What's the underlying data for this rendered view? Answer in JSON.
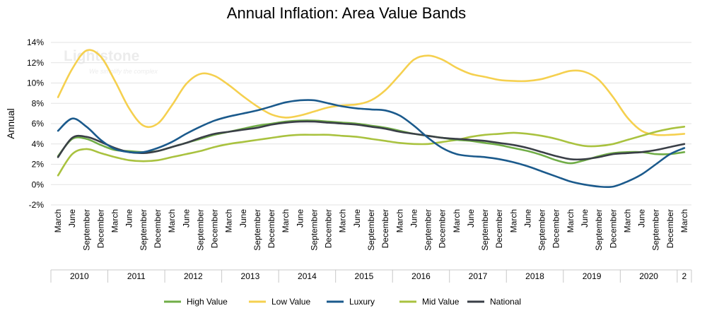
{
  "chart_data": {
    "type": "line",
    "title": "Annual Inflation: Area Value Bands",
    "ylabel": "Annual",
    "xlabel": "",
    "ylim": [
      -2,
      14
    ],
    "ytick_values": [
      -2,
      0,
      2,
      4,
      6,
      8,
      10,
      12,
      14
    ],
    "ytick_labels": [
      "-2%",
      "0%",
      "2%",
      "4%",
      "6%",
      "8%",
      "10%",
      "12%",
      "14%"
    ],
    "grid": true,
    "legend_position": "bottom",
    "watermark": "Lightstone",
    "watermark_tagline": "We simplify the complex",
    "months": [
      "March",
      "June",
      "September",
      "December"
    ],
    "years": [
      "2010",
      "2011",
      "2012",
      "2013",
      "2014",
      "2015",
      "2016",
      "2017",
      "2018",
      "2019",
      "2020",
      "2"
    ],
    "x": [
      "2010-03",
      "2010-06",
      "2010-09",
      "2010-12",
      "2011-03",
      "2011-06",
      "2011-09",
      "2011-12",
      "2012-03",
      "2012-06",
      "2012-09",
      "2012-12",
      "2013-03",
      "2013-06",
      "2013-09",
      "2013-12",
      "2014-03",
      "2014-06",
      "2014-09",
      "2014-12",
      "2015-03",
      "2015-06",
      "2015-09",
      "2015-12",
      "2016-03",
      "2016-06",
      "2016-09",
      "2016-12",
      "2017-03",
      "2017-06",
      "2017-09",
      "2017-12",
      "2018-03",
      "2018-06",
      "2018-09",
      "2018-12",
      "2019-03",
      "2019-06",
      "2019-09",
      "2019-12",
      "2020-03",
      "2020-06",
      "2020-09",
      "2020-12",
      "2021-03"
    ],
    "series": [
      {
        "name": "High Value",
        "color": "#70ad47",
        "values": [
          2.8,
          4.5,
          4.5,
          3.9,
          3.4,
          3.3,
          3.2,
          3.3,
          3.7,
          4.1,
          4.5,
          4.9,
          5.2,
          5.5,
          5.8,
          6.0,
          6.2,
          6.3,
          6.3,
          6.2,
          6.1,
          6.0,
          5.8,
          5.6,
          5.3,
          5.0,
          4.8,
          4.6,
          4.4,
          4.3,
          4.1,
          3.9,
          3.6,
          3.3,
          2.9,
          2.4,
          2.1,
          2.4,
          2.8,
          3.1,
          3.2,
          3.2,
          3.0,
          3.0,
          3.2
        ]
      },
      {
        "name": "Low Value",
        "color": "#f5d04f",
        "values": [
          8.6,
          11.4,
          13.2,
          12.6,
          10.2,
          7.5,
          5.8,
          6.0,
          7.8,
          9.9,
          10.9,
          10.7,
          9.8,
          8.7,
          7.7,
          6.9,
          6.6,
          6.8,
          7.2,
          7.6,
          7.8,
          7.9,
          8.3,
          9.3,
          10.8,
          12.3,
          12.7,
          12.3,
          11.5,
          10.9,
          10.6,
          10.3,
          10.2,
          10.2,
          10.4,
          10.8,
          11.2,
          11.1,
          10.3,
          8.6,
          6.6,
          5.3,
          4.9,
          4.9,
          5.0
        ]
      },
      {
        "name": "Luxury",
        "color": "#1b5a8c",
        "values": [
          5.3,
          6.5,
          5.7,
          4.4,
          3.5,
          3.2,
          3.2,
          3.6,
          4.2,
          5.0,
          5.7,
          6.3,
          6.7,
          7.0,
          7.3,
          7.7,
          8.1,
          8.3,
          8.3,
          8.0,
          7.7,
          7.5,
          7.4,
          7.3,
          6.8,
          5.8,
          4.6,
          3.6,
          3.0,
          2.8,
          2.7,
          2.5,
          2.2,
          1.8,
          1.3,
          0.8,
          0.3,
          0.0,
          -0.2,
          -0.2,
          0.3,
          1.0,
          2.0,
          3.0,
          3.6
        ]
      },
      {
        "name": "Mid Value",
        "color": "#a9c23f",
        "values": [
          0.9,
          3.0,
          3.5,
          3.1,
          2.7,
          2.4,
          2.3,
          2.4,
          2.7,
          3.0,
          3.3,
          3.7,
          4.0,
          4.2,
          4.4,
          4.6,
          4.8,
          4.9,
          4.9,
          4.9,
          4.8,
          4.7,
          4.5,
          4.3,
          4.1,
          4.0,
          4.0,
          4.2,
          4.4,
          4.7,
          4.9,
          5.0,
          5.1,
          5.0,
          4.8,
          4.5,
          4.1,
          3.8,
          3.8,
          4.0,
          4.4,
          4.8,
          5.2,
          5.5,
          5.7
        ]
      },
      {
        "name": "National",
        "color": "#3a3f47",
        "values": [
          2.7,
          4.6,
          4.7,
          4.2,
          3.6,
          3.2,
          3.1,
          3.3,
          3.7,
          4.1,
          4.6,
          5.0,
          5.2,
          5.4,
          5.6,
          5.9,
          6.1,
          6.2,
          6.2,
          6.1,
          6.0,
          5.9,
          5.7,
          5.5,
          5.2,
          5.0,
          4.8,
          4.6,
          4.5,
          4.4,
          4.3,
          4.1,
          3.9,
          3.6,
          3.2,
          2.8,
          2.5,
          2.5,
          2.7,
          3.0,
          3.1,
          3.2,
          3.4,
          3.7,
          4.0
        ]
      }
    ]
  }
}
